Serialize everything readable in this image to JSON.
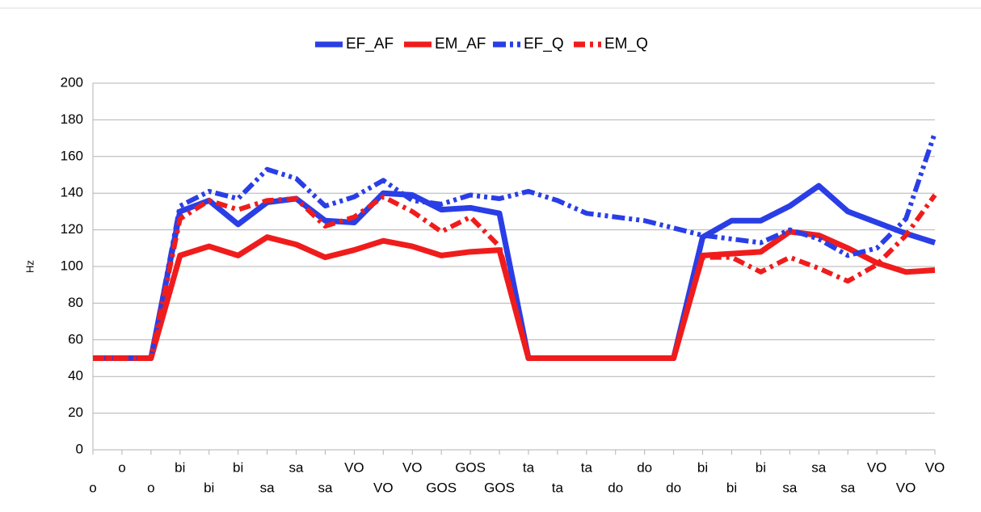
{
  "chart_data": {
    "type": "line",
    "y_label": "Hz",
    "categories": [
      "o",
      "o",
      "o",
      "bi",
      "bi",
      "bi",
      "sa",
      "sa",
      "sa",
      "VO",
      "VO",
      "VO",
      "GOS",
      "GOS",
      "GOS",
      "ta",
      "ta",
      "ta",
      "do",
      "do",
      "do",
      "bi",
      "bi",
      "bi",
      "sa",
      "sa",
      "sa",
      "VO",
      "VO",
      "VO"
    ],
    "series": [
      {
        "name": "EF_AF",
        "color": "#2a3ee6",
        "style": "solid",
        "values": [
          50,
          50,
          50,
          130,
          136,
          123,
          135,
          137,
          125,
          124,
          140,
          139,
          131,
          132,
          129,
          50,
          50,
          50,
          50,
          50,
          50,
          116,
          125,
          125,
          133,
          144,
          130,
          124,
          118,
          113
        ]
      },
      {
        "name": "EM_AF",
        "color": "#f01c1c",
        "style": "solid",
        "values": [
          50,
          50,
          50,
          106,
          111,
          106,
          116,
          112,
          105,
          109,
          114,
          111,
          106,
          108,
          109,
          50,
          50,
          50,
          50,
          50,
          50,
          106,
          107,
          108,
          119,
          117,
          110,
          102,
          97,
          98
        ]
      },
      {
        "name": "EF_Q",
        "color": "#2a3ee6",
        "style": "dashdotdot",
        "values": [
          50,
          50,
          50,
          133,
          141,
          137,
          153,
          148,
          133,
          138,
          147,
          136,
          134,
          139,
          137,
          141,
          136,
          129,
          127,
          125,
          121,
          117,
          115,
          113,
          120,
          115,
          106,
          110,
          126,
          173
        ]
      },
      {
        "name": "EM_Q",
        "color": "#f01c1c",
        "style": "dashdot",
        "values": [
          50,
          50,
          50,
          126,
          136,
          131,
          136,
          137,
          122,
          127,
          138,
          130,
          119,
          127,
          111,
          50,
          50,
          50,
          50,
          50,
          50,
          105,
          105,
          97,
          105,
          99,
          92,
          101,
          117,
          139
        ]
      }
    ],
    "ylim": [
      0,
      200
    ],
    "yticks": [
      0,
      20,
      40,
      60,
      80,
      100,
      120,
      140,
      160,
      180,
      200
    ],
    "grid": true,
    "legend": "top"
  }
}
